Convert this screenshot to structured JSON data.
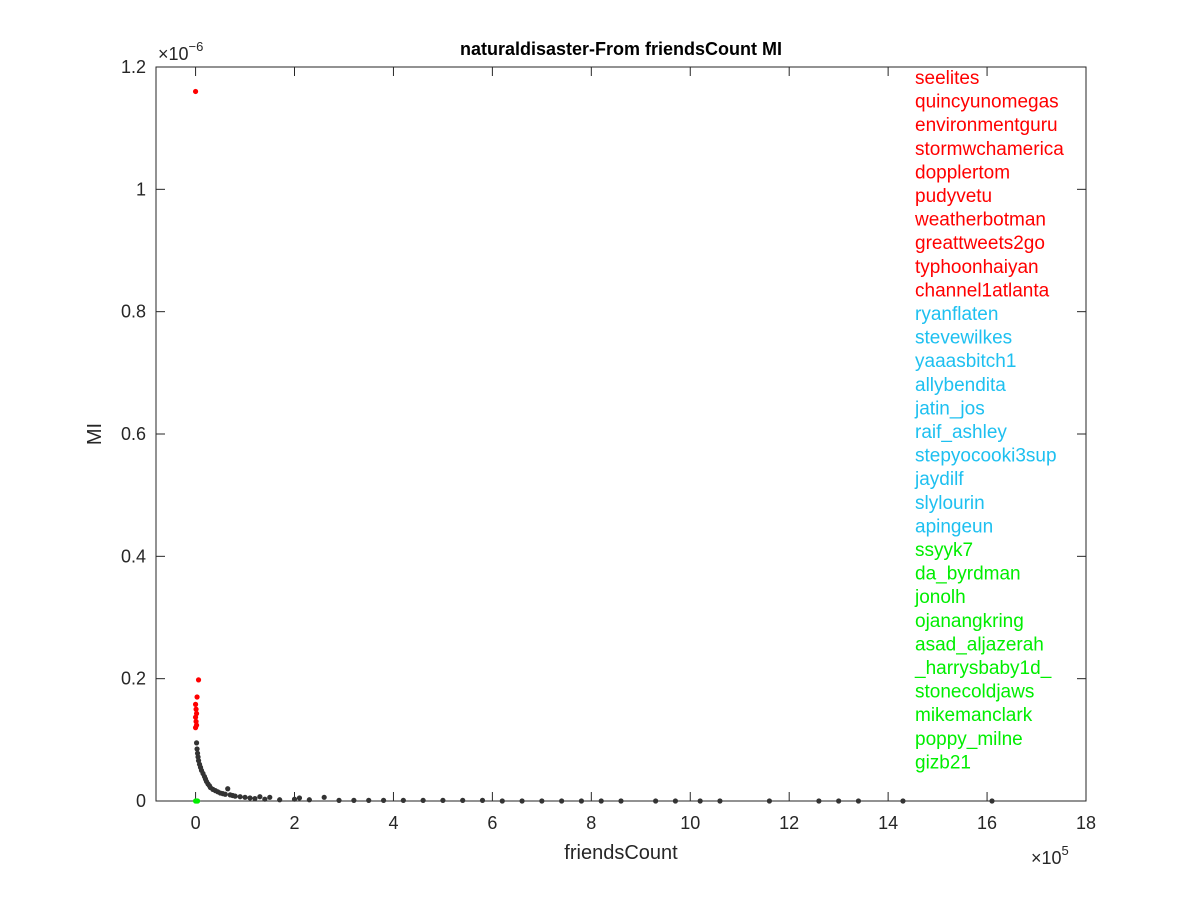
{
  "chart_data": {
    "type": "scatter",
    "title": "naturaldisaster-From friendsCount MI",
    "xlabel": "friendsCount",
    "ylabel": "MI",
    "x_scale_label": "×10",
    "x_scale_exp": "5",
    "y_scale_label": "×10",
    "y_scale_exp": "−6",
    "xlim": [
      -0.8,
      18
    ],
    "ylim": [
      0,
      1.2
    ],
    "x_ticks": [
      0,
      2,
      4,
      6,
      8,
      10,
      12,
      14,
      16,
      18
    ],
    "x_tick_labels": [
      "0",
      "2",
      "4",
      "6",
      "8",
      "10",
      "12",
      "14",
      "16",
      "18"
    ],
    "y_ticks": [
      0,
      0.2,
      0.4,
      0.6,
      0.8,
      1.0,
      1.2
    ],
    "y_tick_labels": [
      "0",
      "0.2",
      "0.4",
      "0.6",
      "0.8",
      "1",
      "1.2"
    ],
    "grid": false,
    "series": [
      {
        "color": "#333333",
        "points": [
          [
            0.02,
            0.095
          ],
          [
            0.03,
            0.085
          ],
          [
            0.04,
            0.078
          ],
          [
            0.05,
            0.072
          ],
          [
            0.06,
            0.066
          ],
          [
            0.08,
            0.06
          ],
          [
            0.1,
            0.055
          ],
          [
            0.12,
            0.05
          ],
          [
            0.15,
            0.045
          ],
          [
            0.18,
            0.04
          ],
          [
            0.2,
            0.036
          ],
          [
            0.22,
            0.032
          ],
          [
            0.25,
            0.028
          ],
          [
            0.28,
            0.025
          ],
          [
            0.3,
            0.022
          ],
          [
            0.35,
            0.019
          ],
          [
            0.4,
            0.017
          ],
          [
            0.45,
            0.015
          ],
          [
            0.5,
            0.013
          ],
          [
            0.55,
            0.012
          ],
          [
            0.6,
            0.011
          ],
          [
            0.65,
            0.02
          ],
          [
            0.7,
            0.01
          ],
          [
            0.75,
            0.009
          ],
          [
            0.8,
            0.008
          ],
          [
            0.9,
            0.007
          ],
          [
            1.0,
            0.006
          ],
          [
            1.1,
            0.005
          ],
          [
            1.2,
            0.004
          ],
          [
            1.3,
            0.007
          ],
          [
            1.4,
            0.003
          ],
          [
            1.5,
            0.006
          ],
          [
            1.7,
            0.002
          ],
          [
            2.0,
            0.003
          ],
          [
            2.1,
            0.005
          ],
          [
            2.3,
            0.002
          ],
          [
            2.6,
            0.006
          ],
          [
            2.9,
            0.001
          ],
          [
            3.2,
            0.001
          ],
          [
            3.5,
            0.001
          ],
          [
            3.8,
            0.001
          ],
          [
            4.2,
            0.001
          ],
          [
            4.6,
            0.001
          ],
          [
            5.0,
            0.001
          ],
          [
            5.4,
            0.001
          ],
          [
            5.8,
            0.001
          ],
          [
            6.2,
            0.0
          ],
          [
            6.6,
            0.0
          ],
          [
            7.0,
            0.0
          ],
          [
            7.4,
            0.0
          ],
          [
            7.8,
            0.0
          ],
          [
            8.2,
            0.0
          ],
          [
            8.6,
            0.0
          ],
          [
            9.3,
            0.0
          ],
          [
            9.7,
            0.0
          ],
          [
            10.2,
            0.0
          ],
          [
            10.6,
            0.0
          ],
          [
            11.6,
            0.0
          ],
          [
            12.6,
            0.0
          ],
          [
            13.0,
            0.0
          ],
          [
            13.4,
            0.0
          ],
          [
            14.3,
            0.0
          ],
          [
            16.1,
            0.0
          ]
        ]
      },
      {
        "color": "#ff0000",
        "points": [
          [
            0.0,
            1.16
          ],
          [
            0.06,
            0.198
          ],
          [
            0.03,
            0.17
          ],
          [
            0.0,
            0.158
          ],
          [
            0.01,
            0.15
          ],
          [
            0.02,
            0.143
          ],
          [
            0.0,
            0.137
          ],
          [
            0.01,
            0.13
          ],
          [
            0.02,
            0.124
          ],
          [
            0.0,
            0.12
          ]
        ]
      },
      {
        "color": "#00ee00",
        "points": [
          [
            0.0,
            0.0
          ],
          [
            0.02,
            0.0
          ],
          [
            0.04,
            0.0
          ]
        ]
      }
    ],
    "legend_placement": "top-right",
    "labels": [
      {
        "text": "seelites",
        "color": "#ff0000"
      },
      {
        "text": "quincyunomegas",
        "color": "#ff0000"
      },
      {
        "text": "environmentguru",
        "color": "#ff0000"
      },
      {
        "text": "stormwchamerica",
        "color": "#ff0000"
      },
      {
        "text": "dopplertom",
        "color": "#ff0000"
      },
      {
        "text": "pudyvetu",
        "color": "#ff0000"
      },
      {
        "text": "weatherbotman",
        "color": "#ff0000"
      },
      {
        "text": "greattweets2go",
        "color": "#ff0000"
      },
      {
        "text": "typhoonhaiyan",
        "color": "#ff0000"
      },
      {
        "text": "channel1atlanta",
        "color": "#ff0000"
      },
      {
        "text": "ryanflaten",
        "color": "#1ec0f0"
      },
      {
        "text": "stevewilkes",
        "color": "#1ec0f0"
      },
      {
        "text": "yaaasbitch1",
        "color": "#1ec0f0"
      },
      {
        "text": "allybendita",
        "color": "#1ec0f0"
      },
      {
        "text": "jatin_jos",
        "color": "#1ec0f0"
      },
      {
        "text": "raif_ashley",
        "color": "#1ec0f0"
      },
      {
        "text": "stepyocooki3sup",
        "color": "#1ec0f0"
      },
      {
        "text": "jaydilf",
        "color": "#1ec0f0"
      },
      {
        "text": "slylourin",
        "color": "#1ec0f0"
      },
      {
        "text": "apingeun",
        "color": "#1ec0f0"
      },
      {
        "text": "ssyyk7",
        "color": "#00ee00"
      },
      {
        "text": "da_byrdman",
        "color": "#00ee00"
      },
      {
        "text": "jonolh",
        "color": "#00ee00"
      },
      {
        "text": "ojanangkring",
        "color": "#00ee00"
      },
      {
        "text": "asad_aljazerah",
        "color": "#00ee00"
      },
      {
        "text": "_harrysbaby1d_",
        "color": "#00ee00"
      },
      {
        "text": "stonecoldjaws",
        "color": "#00ee00"
      },
      {
        "text": "mikemanclark",
        "color": "#00ee00"
      },
      {
        "text": "poppy_milne",
        "color": "#00ee00"
      },
      {
        "text": "gizb21",
        "color": "#00ee00"
      }
    ]
  }
}
